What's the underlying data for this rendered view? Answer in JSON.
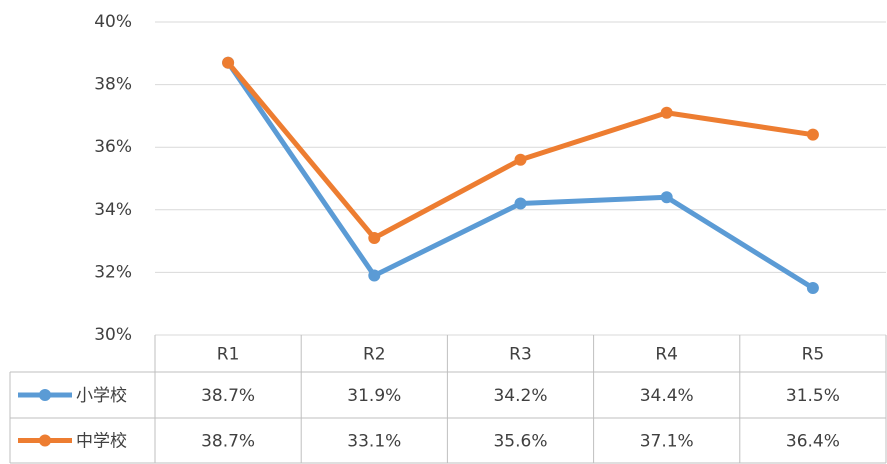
{
  "chart_data": {
    "type": "line",
    "categories": [
      "R1",
      "R2",
      "R3",
      "R4",
      "R5"
    ],
    "series": [
      {
        "name": "小学校",
        "color": "#5b9bd5",
        "values": [
          38.7,
          31.9,
          34.2,
          34.4,
          31.5
        ],
        "value_labels": [
          "38.7%",
          "31.9%",
          "34.2%",
          "34.4%",
          "31.5%"
        ]
      },
      {
        "name": "中学校",
        "color": "#ed7d31",
        "values": [
          38.7,
          33.1,
          35.6,
          37.1,
          36.4
        ],
        "value_labels": [
          "38.7%",
          "33.1%",
          "35.6%",
          "37.1%",
          "36.4%"
        ]
      }
    ],
    "ylim": [
      30,
      40
    ],
    "yticks": [
      {
        "value": 30,
        "label": "30%"
      },
      {
        "value": 32,
        "label": "32%"
      },
      {
        "value": 34,
        "label": "34%"
      },
      {
        "value": 36,
        "label": "36%"
      },
      {
        "value": 38,
        "label": "38%"
      },
      {
        "value": 40,
        "label": "40%"
      }
    ],
    "grid": true
  }
}
